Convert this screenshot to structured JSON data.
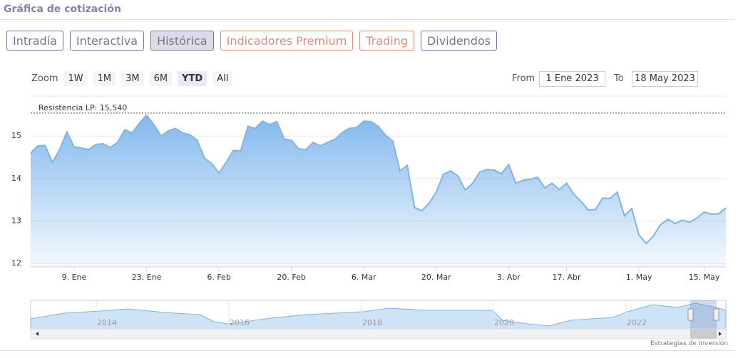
{
  "header": {
    "title": "Gráfica de cotización"
  },
  "tabs": [
    {
      "label": "Intradía",
      "color": "#7b6f9c"
    },
    {
      "label": "Interactiva",
      "color": "#7b6f9c"
    },
    {
      "label": "Histórica",
      "color": "#7b6f9c",
      "active": true
    },
    {
      "label": "Indicadores Premium",
      "color": "#e38a7c"
    },
    {
      "label": "Trading",
      "color": "#e38a7c"
    },
    {
      "label": "Dividendos",
      "color": "#7b6f9c"
    }
  ],
  "zoom": {
    "label": "Zoom",
    "buttons": [
      "1W",
      "1M",
      "3M",
      "6M",
      "YTD",
      "All"
    ],
    "active": "YTD"
  },
  "range": {
    "from_label": "From",
    "from": "1 Ene 2023",
    "to_label": "To",
    "to": "18 May 2023"
  },
  "chart_data": {
    "type": "area",
    "color": "#7cb5ec",
    "categories": [
      null,
      null,
      null,
      null,
      null,
      null,
      "9. Ene",
      null,
      null,
      null,
      null,
      null,
      null,
      null,
      null,
      null,
      "23. Ene",
      null,
      null,
      null,
      null,
      null,
      null,
      null,
      null,
      null,
      "6. Feb",
      null,
      null,
      null,
      null,
      null,
      null,
      null,
      null,
      null,
      "20. Feb",
      null,
      null,
      null,
      null,
      null,
      null,
      null,
      null,
      null,
      "6. Mar",
      null,
      null,
      null,
      null,
      null,
      null,
      null,
      null,
      null,
      "20. Mar",
      null,
      null,
      null,
      null,
      null,
      null,
      null,
      null,
      null,
      "3. Abr",
      null,
      null,
      null,
      null,
      null,
      null,
      null,
      "17. Abr",
      null,
      null,
      null,
      null,
      null,
      null,
      null,
      null,
      null,
      "1. May",
      null,
      null,
      null,
      null,
      null,
      null,
      null,
      null,
      "15. May",
      null,
      null,
      null
    ],
    "values": [
      14.6,
      14.77,
      14.78,
      14.38,
      14.68,
      15.1,
      14.75,
      14.72,
      14.68,
      14.8,
      14.82,
      14.73,
      14.85,
      15.15,
      15.07,
      15.3,
      15.49,
      15.27,
      15.0,
      15.12,
      15.18,
      15.07,
      15.03,
      14.9,
      14.48,
      14.35,
      14.13,
      14.38,
      14.66,
      14.65,
      15.23,
      15.18,
      15.35,
      15.27,
      15.34,
      14.93,
      14.9,
      14.7,
      14.68,
      14.85,
      14.77,
      14.85,
      14.92,
      15.08,
      15.18,
      15.2,
      15.35,
      15.34,
      15.23,
      15.02,
      14.88,
      14.18,
      14.31,
      13.32,
      13.24,
      13.41,
      13.68,
      14.1,
      14.18,
      14.06,
      13.73,
      13.88,
      14.15,
      14.21,
      14.2,
      14.11,
      14.33,
      13.89,
      13.96,
      13.98,
      14.03,
      13.78,
      13.89,
      13.74,
      13.89,
      13.63,
      13.46,
      13.26,
      13.27,
      13.54,
      13.53,
      13.68,
      13.12,
      13.29,
      12.67,
      12.47,
      12.65,
      12.92,
      13.04,
      12.94,
      13.02,
      12.97,
      13.07,
      13.21,
      13.16,
      13.17,
      13.31
    ],
    "ylim": [
      11.92,
      15.94
    ],
    "yticks": [
      12,
      13,
      14,
      15
    ],
    "grid": true,
    "annotation": {
      "label": "Resistencia LP: 15,540",
      "value": 15.54
    }
  },
  "navigator": {
    "labels": [
      "2014",
      "2016",
      "2018",
      "2020",
      "2022"
    ]
  },
  "credits": "Estrategias de Inversión"
}
